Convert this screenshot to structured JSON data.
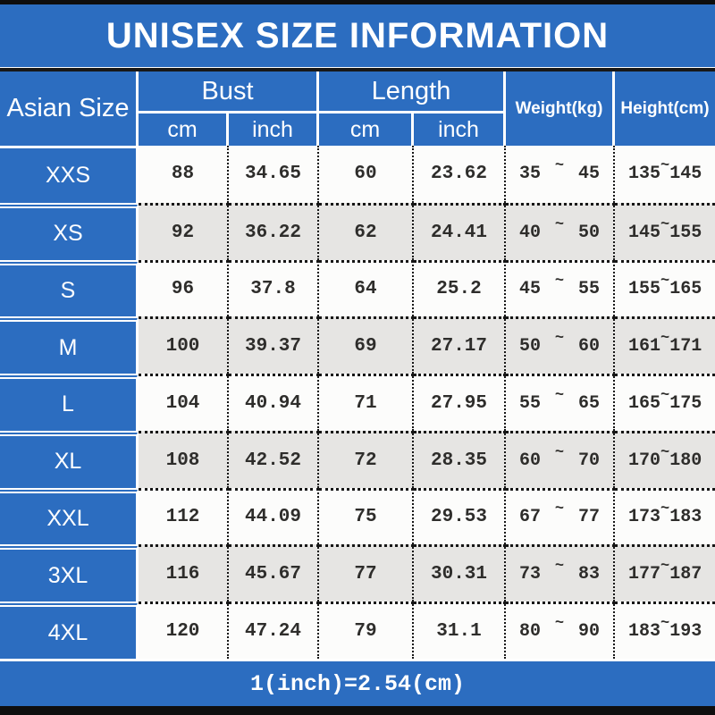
{
  "title": "UNISEX SIZE INFORMATION",
  "footer": "1(inch)=2.54(cm)",
  "tilde": "~",
  "colors": {
    "blue": "#2c6dc0",
    "row_white": "#fcfcfb",
    "row_gray": "#e6e5e3",
    "bar_black": "#0e0e0e",
    "dotted_line": "#161616",
    "text_data": "#2e2d2b"
  },
  "header": {
    "size": "Asian Size",
    "bust": "Bust",
    "length": "Length",
    "cm": "cm",
    "inch": "inch",
    "weight": "Weight(kg)",
    "height": "Height(cm)"
  },
  "rows": [
    {
      "size": "XXS",
      "bust_cm": "88",
      "bust_inch": "34.65",
      "length_cm": "60",
      "length_inch": "23.62",
      "weight_min": "35",
      "weight_max": "45",
      "height_min": "135",
      "height_max": "145"
    },
    {
      "size": "XS",
      "bust_cm": "92",
      "bust_inch": "36.22",
      "length_cm": "62",
      "length_inch": "24.41",
      "weight_min": "40",
      "weight_max": "50",
      "height_min": "145",
      "height_max": "155"
    },
    {
      "size": "S",
      "bust_cm": "96",
      "bust_inch": "37.8",
      "length_cm": "64",
      "length_inch": "25.2",
      "weight_min": "45",
      "weight_max": "55",
      "height_min": "155",
      "height_max": "165"
    },
    {
      "size": "M",
      "bust_cm": "100",
      "bust_inch": "39.37",
      "length_cm": "69",
      "length_inch": "27.17",
      "weight_min": "50",
      "weight_max": "60",
      "height_min": "161",
      "height_max": "171"
    },
    {
      "size": "L",
      "bust_cm": "104",
      "bust_inch": "40.94",
      "length_cm": "71",
      "length_inch": "27.95",
      "weight_min": "55",
      "weight_max": "65",
      "height_min": "165",
      "height_max": "175"
    },
    {
      "size": "XL",
      "bust_cm": "108",
      "bust_inch": "42.52",
      "length_cm": "72",
      "length_inch": "28.35",
      "weight_min": "60",
      "weight_max": "70",
      "height_min": "170",
      "height_max": "180"
    },
    {
      "size": "XXL",
      "bust_cm": "112",
      "bust_inch": "44.09",
      "length_cm": "75",
      "length_inch": "29.53",
      "weight_min": "67",
      "weight_max": "77",
      "height_min": "173",
      "height_max": "183"
    },
    {
      "size": "3XL",
      "bust_cm": "116",
      "bust_inch": "45.67",
      "length_cm": "77",
      "length_inch": "30.31",
      "weight_min": "73",
      "weight_max": "83",
      "height_min": "177",
      "height_max": "187"
    },
    {
      "size": "4XL",
      "bust_cm": "120",
      "bust_inch": "47.24",
      "length_cm": "79",
      "length_inch": "31.1",
      "weight_min": "80",
      "weight_max": "90",
      "height_min": "183",
      "height_max": "193"
    }
  ],
  "chart_data": {
    "type": "table",
    "title": "UNISEX SIZE INFORMATION",
    "columns": [
      "Asian Size",
      "Bust (cm)",
      "Bust (inch)",
      "Length (cm)",
      "Length (inch)",
      "Weight (kg)",
      "Height (cm)"
    ],
    "rows": [
      [
        "XXS",
        "88",
        "34.65",
        "60",
        "23.62",
        "35~45",
        "135~145"
      ],
      [
        "XS",
        "92",
        "36.22",
        "62",
        "24.41",
        "40~50",
        "145~155"
      ],
      [
        "S",
        "96",
        "37.8",
        "64",
        "25.2",
        "45~55",
        "155~165"
      ],
      [
        "M",
        "100",
        "39.37",
        "69",
        "27.17",
        "50~60",
        "161~171"
      ],
      [
        "L",
        "104",
        "40.94",
        "71",
        "27.95",
        "55~65",
        "165~175"
      ],
      [
        "XL",
        "108",
        "42.52",
        "72",
        "28.35",
        "60~70",
        "170~180"
      ],
      [
        "XXL",
        "112",
        "44.09",
        "75",
        "29.53",
        "67~77",
        "173~183"
      ],
      [
        "3XL",
        "116",
        "45.67",
        "77",
        "30.31",
        "73~83",
        "177~187"
      ],
      [
        "4XL",
        "120",
        "47.24",
        "79",
        "31.1",
        "80~90",
        "183~193"
      ]
    ],
    "note": "1(inch)=2.54(cm)"
  }
}
